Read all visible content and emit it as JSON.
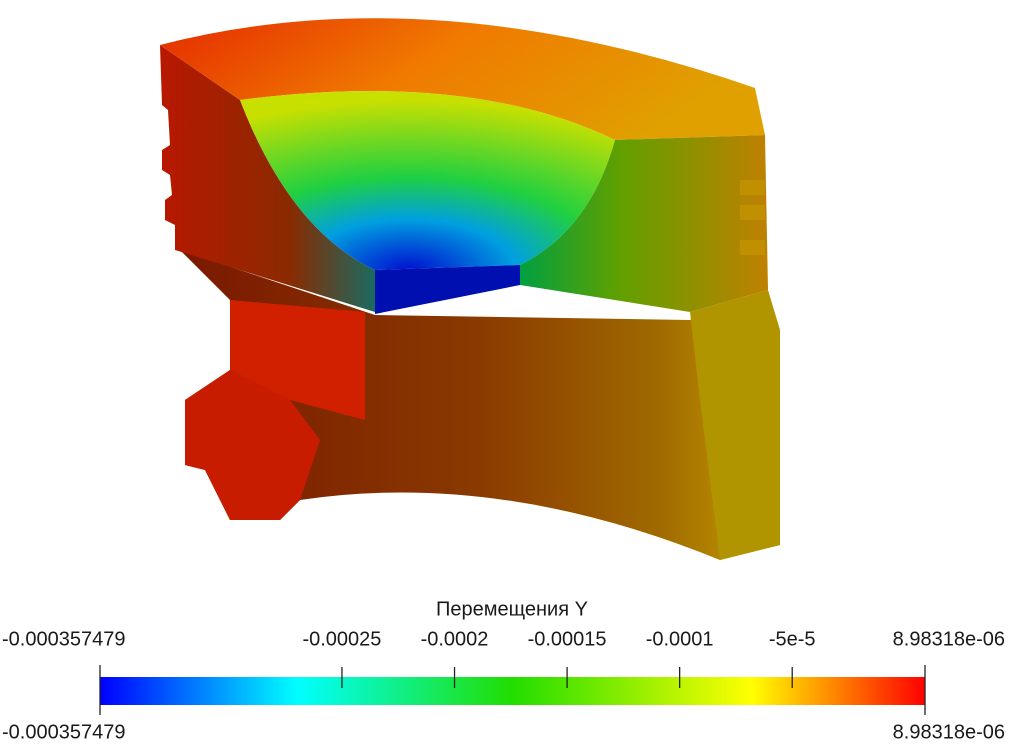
{
  "colorbar": {
    "title": "Перемещения Y",
    "range": [
      {
        "value": -0.000357479,
        "label": "-0.000357479"
      },
      {
        "value": 8.98318e-06,
        "label": "8.98318e-06"
      }
    ],
    "ticks": [
      {
        "value": -0.000357479,
        "label": "-0.000357479"
      },
      {
        "value": -0.00025,
        "label": "-0.00025"
      },
      {
        "value": -0.0002,
        "label": "-0.0002"
      },
      {
        "value": -0.00015,
        "label": "-0.00015"
      },
      {
        "value": -0.0001,
        "label": "-0.0001"
      },
      {
        "value": -5e-05,
        "label": "-5e-5"
      },
      {
        "value": 8.98318e-06,
        "label": "8.98318e-06"
      }
    ]
  }
}
